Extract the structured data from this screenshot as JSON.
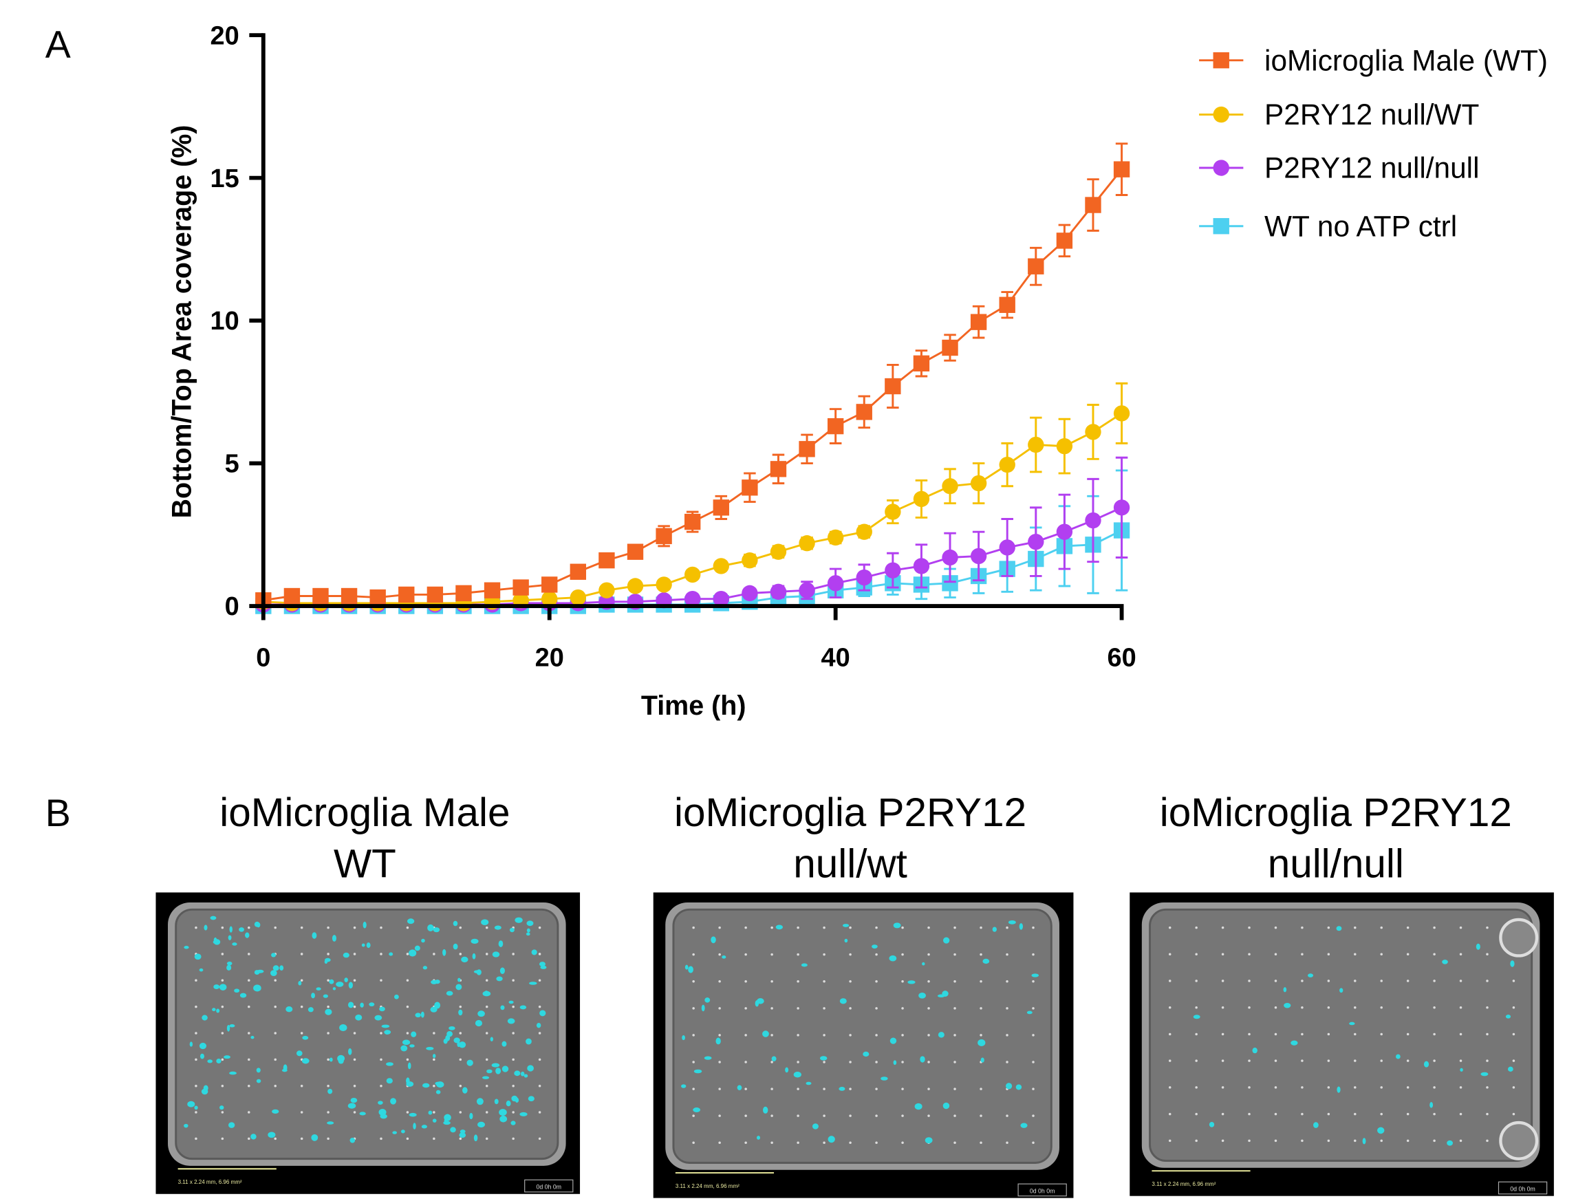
{
  "panel_labels": {
    "a": "A",
    "b": "B"
  },
  "chart_data": {
    "type": "line",
    "xlabel": "Time (h)",
    "ylabel": "Bottom/Top Area coverage (%)",
    "xlim": [
      0,
      60
    ],
    "ylim": [
      0,
      20
    ],
    "xticks": [
      "0",
      "20",
      "40",
      "60"
    ],
    "yticks": [
      "0",
      "5",
      "10",
      "15",
      "20"
    ],
    "grid": false,
    "legend_position": "top-right",
    "x": [
      0,
      2,
      4,
      6,
      8,
      10,
      12,
      14,
      16,
      18,
      20,
      22,
      24,
      26,
      28,
      30,
      32,
      34,
      36,
      38,
      40,
      42,
      44,
      46,
      48,
      50,
      52,
      54,
      56,
      58,
      60
    ],
    "series": [
      {
        "name": "ioMicroglia Male (WT)",
        "color": "#f26522",
        "marker": "square",
        "values": [
          0.2,
          0.35,
          0.35,
          0.35,
          0.3,
          0.4,
          0.4,
          0.45,
          0.55,
          0.65,
          0.75,
          1.2,
          1.6,
          1.9,
          2.45,
          2.95,
          3.45,
          4.15,
          4.8,
          5.5,
          6.3,
          6.8,
          7.7,
          8.5,
          9.05,
          9.95,
          10.55,
          11.9,
          12.8,
          14.05,
          15.3
        ],
        "errors": [
          0.1,
          0.1,
          0.1,
          0.1,
          0.1,
          0.1,
          0.1,
          0.1,
          0.1,
          0.1,
          0.15,
          0.15,
          0.15,
          0.15,
          0.35,
          0.35,
          0.4,
          0.5,
          0.5,
          0.5,
          0.6,
          0.55,
          0.75,
          0.45,
          0.45,
          0.55,
          0.45,
          0.65,
          0.55,
          0.9,
          0.9
        ]
      },
      {
        "name": "P2RY12 null/WT",
        "color": "#f5c000",
        "marker": "circle",
        "values": [
          0.15,
          0.1,
          0.1,
          0.1,
          0.1,
          0.1,
          0.1,
          0.1,
          0.15,
          0.2,
          0.25,
          0.3,
          0.55,
          0.7,
          0.75,
          1.1,
          1.4,
          1.6,
          1.9,
          2.2,
          2.4,
          2.6,
          3.3,
          3.75,
          4.2,
          4.3,
          4.95,
          5.65,
          5.6,
          6.1,
          6.75
        ],
        "errors": [
          0.05,
          0.05,
          0.05,
          0.05,
          0.05,
          0.05,
          0.05,
          0.05,
          0.05,
          0.05,
          0.05,
          0.05,
          0.1,
          0.1,
          0.1,
          0.1,
          0.15,
          0.2,
          0.2,
          0.2,
          0.2,
          0.2,
          0.4,
          0.65,
          0.6,
          0.7,
          0.75,
          0.95,
          0.95,
          0.95,
          1.05
        ]
      },
      {
        "name": "P2RY12 null/null",
        "color": "#b23ff0",
        "marker": "circle",
        "values": [
          0.05,
          0.05,
          0.05,
          0.05,
          0.05,
          0.05,
          0.05,
          0.05,
          0.05,
          0.1,
          0.1,
          0.1,
          0.15,
          0.15,
          0.2,
          0.25,
          0.25,
          0.45,
          0.5,
          0.55,
          0.8,
          1.0,
          1.25,
          1.4,
          1.7,
          1.75,
          2.05,
          2.25,
          2.6,
          3.0,
          3.45
        ],
        "errors": [
          0.05,
          0.05,
          0.05,
          0.05,
          0.05,
          0.05,
          0.05,
          0.05,
          0.05,
          0.05,
          0.05,
          0.05,
          0.05,
          0.05,
          0.1,
          0.1,
          0.1,
          0.15,
          0.2,
          0.3,
          0.5,
          0.45,
          0.6,
          0.75,
          0.85,
          0.85,
          1.0,
          1.2,
          1.3,
          1.45,
          1.75
        ]
      },
      {
        "name": "WT no ATP ctrl",
        "color": "#4dd0f0",
        "marker": "square",
        "values": [
          0.0,
          0.0,
          0.0,
          0.0,
          0.0,
          0.0,
          0.0,
          0.0,
          0.0,
          0.0,
          0.0,
          0.0,
          0.05,
          0.05,
          0.05,
          0.05,
          0.1,
          0.15,
          0.3,
          0.35,
          0.55,
          0.65,
          0.8,
          0.75,
          0.8,
          1.05,
          1.3,
          1.65,
          2.1,
          2.15,
          2.65
        ],
        "errors": [
          0.02,
          0.02,
          0.02,
          0.02,
          0.02,
          0.02,
          0.02,
          0.02,
          0.02,
          0.02,
          0.02,
          0.02,
          0.05,
          0.05,
          0.05,
          0.05,
          0.05,
          0.1,
          0.1,
          0.15,
          0.2,
          0.3,
          0.4,
          0.5,
          0.5,
          0.6,
          0.8,
          1.1,
          1.4,
          1.7,
          2.1
        ]
      }
    ]
  },
  "images": [
    {
      "title_line1": "ioMicroglia Male",
      "title_line2": "WT",
      "scale_text": "3.11 x 2.24 mm, 6.96 mm²",
      "time_text": "0d 0h 0m",
      "cell_color": "#2fd8e0"
    },
    {
      "title_line1": "ioMicroglia P2RY12",
      "title_line2": "null/wt",
      "scale_text": "3.11 x 2.24 mm, 6.96 mm²",
      "time_text": "0d 0h 0m",
      "cell_color": "#2fd8e0"
    },
    {
      "title_line1": "ioMicroglia P2RY12",
      "title_line2": "null/null",
      "scale_text": "3.11 x 2.24 mm, 6.96 mm²",
      "time_text": "0d 0h 0m",
      "cell_color": "#2fd8e0"
    }
  ]
}
